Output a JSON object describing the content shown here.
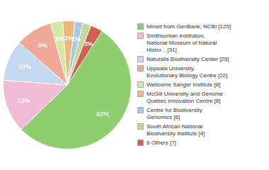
{
  "chart_data": {
    "type": "pie",
    "categories": [
      "Mined from GenBank, NCBI [125]",
      "Smithsonian Institution,\nNational Museum of Natural\nHistor... [31]",
      "Naturalis Biodiversity Center [25]",
      "Uppsala University,\nEvolutionary Biology Centre [22]",
      "Wellcome Sanger Institute [8]",
      "McGill University and Genome\nQuebec Innovation Centre [8]",
      "Centre for Biodiversity\nGenomics [6]",
      "South African National\nBiodiversity Institute [4]",
      "6 Others [7]"
    ],
    "values": [
      52,
      13,
      10,
      9,
      3,
      3,
      2,
      2,
      3
    ],
    "value_labels": [
      "52%",
      "13%",
      "10%",
      "9%",
      "3%",
      "3%",
      "2%",
      null,
      "3%"
    ],
    "colors": [
      "#8fce6e",
      "#f0bcd4",
      "#c4d8f0",
      "#f0a898",
      "#d4e8a4",
      "#f0b878",
      "#a8c8e8",
      "#c4d898",
      "#d46050"
    ],
    "data_labels": true,
    "legend": "right"
  }
}
